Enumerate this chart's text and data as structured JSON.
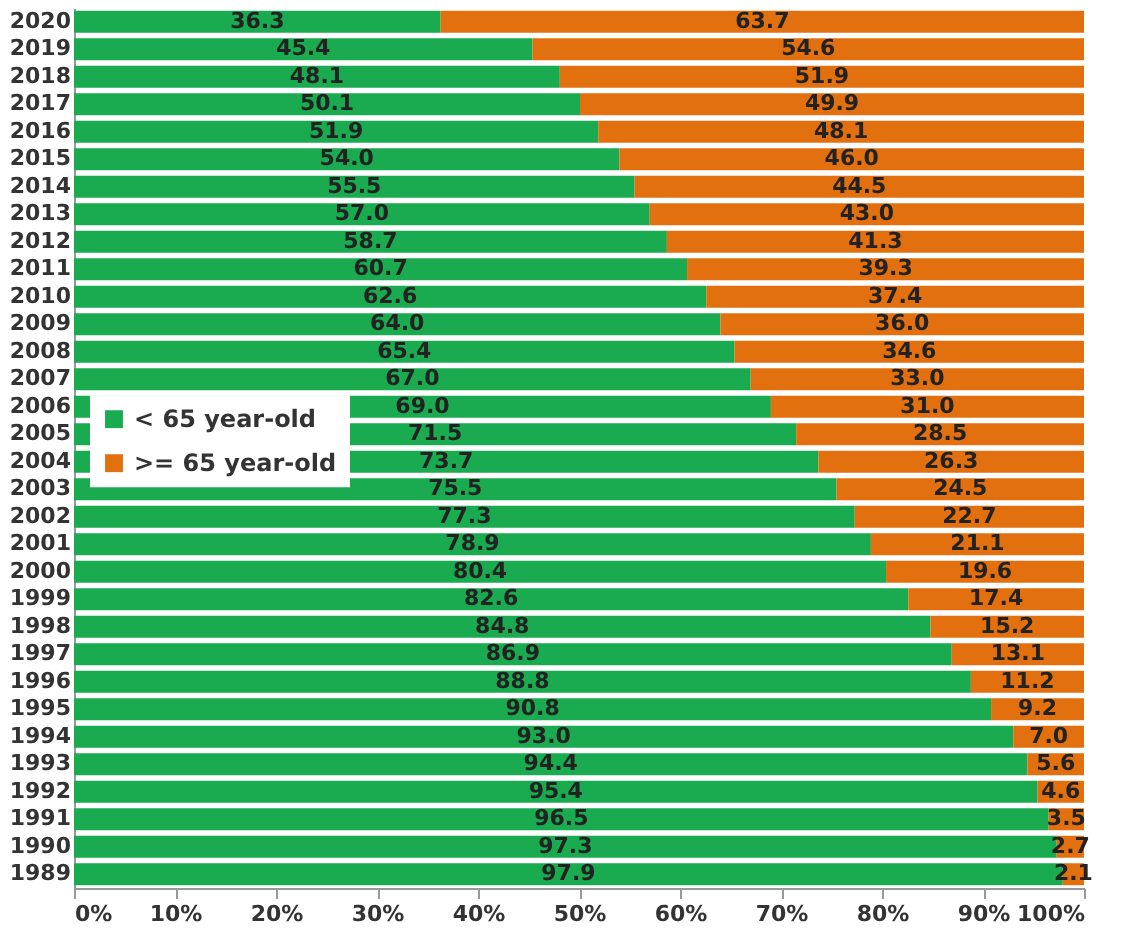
{
  "chart_data": {
    "type": "bar",
    "orientation": "horizontal",
    "stacked": true,
    "categories": [
      "2020",
      "2019",
      "2018",
      "2017",
      "2016",
      "2015",
      "2014",
      "2013",
      "2012",
      "2011",
      "2010",
      "2009",
      "2008",
      "2007",
      "2006",
      "2005",
      "2004",
      "2003",
      "2002",
      "2001",
      "2000",
      "1999",
      "1998",
      "1997",
      "1996",
      "1995",
      "1994",
      "1993",
      "1992",
      "1991",
      "1990",
      "1989"
    ],
    "series": [
      {
        "name": "< 65 year-old",
        "color": "#1aaa4f",
        "values": [
          36.3,
          45.4,
          48.1,
          50.1,
          51.9,
          54.0,
          55.5,
          57.0,
          58.7,
          60.7,
          62.6,
          64.0,
          65.4,
          67.0,
          69.0,
          71.5,
          73.7,
          75.5,
          77.3,
          78.9,
          80.4,
          82.6,
          84.8,
          86.9,
          88.8,
          90.8,
          93.0,
          94.4,
          95.4,
          96.5,
          97.3,
          97.9
        ],
        "value_labels": [
          "36.3",
          "45.4",
          "48.1",
          "50.1",
          "51.9",
          "54.0",
          "55.5",
          "57.0",
          "58.7",
          "60.7",
          "62.6",
          "64.0",
          "65.4",
          "67.0",
          "69.0",
          "71.5",
          "73.7",
          "75.5",
          "77.3",
          "78.9",
          "80.4",
          "82.6",
          "84.8",
          "86.9",
          "88.8",
          "90.8",
          "93.0",
          "94.4",
          "95.4",
          "96.5",
          "97.3",
          "97.9"
        ]
      },
      {
        "name": ">= 65 year-old",
        "color": "#e2700f",
        "values": [
          63.7,
          54.6,
          51.9,
          49.9,
          48.1,
          46.0,
          44.5,
          43.0,
          41.3,
          39.3,
          37.4,
          36.0,
          34.6,
          33.0,
          31.0,
          28.5,
          26.3,
          24.5,
          22.7,
          21.1,
          19.6,
          17.4,
          15.2,
          13.1,
          11.2,
          9.2,
          7.0,
          5.6,
          4.6,
          3.5,
          2.7,
          2.1
        ],
        "value_labels": [
          "63.7",
          "54.6",
          "51.9",
          "49.9",
          "48.1",
          "46.0",
          "44.5",
          "43.0",
          "41.3",
          "39.3",
          "37.4",
          "36.0",
          "34.6",
          "33.0",
          "31.0",
          "28.5",
          "26.3",
          "24.5",
          "22.7",
          "21.1",
          "19.6",
          "17.4",
          "15.2",
          "13.1",
          "11.2",
          "9.2",
          "7.0",
          "5.6",
          "4.6",
          "3.5",
          "2.7",
          "2.1"
        ]
      }
    ],
    "xlim": [
      0,
      100
    ],
    "xticks": [
      {
        "value": 0,
        "label": "0%"
      },
      {
        "value": 10,
        "label": "10%"
      },
      {
        "value": 20,
        "label": "20%"
      },
      {
        "value": 30,
        "label": "30%"
      },
      {
        "value": 40,
        "label": "40%"
      },
      {
        "value": 50,
        "label": "50%"
      },
      {
        "value": 60,
        "label": "60%"
      },
      {
        "value": 70,
        "label": "70%"
      },
      {
        "value": 80,
        "label": "80%"
      },
      {
        "value": 90,
        "label": "90%"
      },
      {
        "value": 100,
        "label": "100%"
      }
    ],
    "grid": false,
    "legend": "left"
  }
}
